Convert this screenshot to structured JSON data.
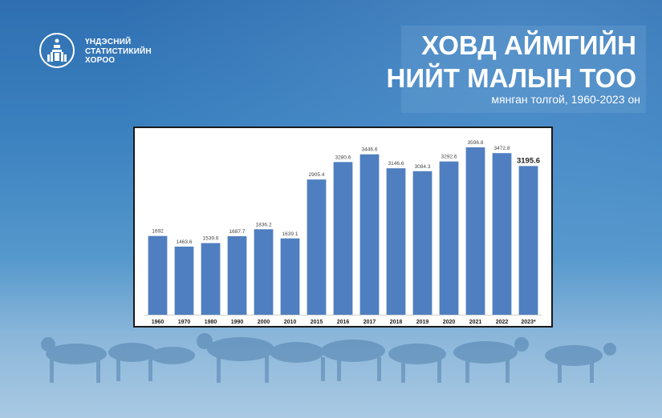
{
  "header": {
    "org_name_lines": [
      "ҮНДЭСНИЙ",
      "СТАТИСТИКИЙН",
      "ХОРОО"
    ],
    "title_lines": [
      "ХОВД АЙМГИЙН",
      "НИЙТ МАЛЫН ТОО"
    ],
    "subtitle": "мянган толгой, 1960-2023 он"
  },
  "colors": {
    "bar": "#4f7fc0",
    "background": "#3a80bf"
  },
  "chart_data": {
    "type": "bar",
    "title": "ХОВД АЙМГИЙН НИЙТ МАЛЫН ТОО",
    "subtitle": "мянган толгой, 1960-2023 он",
    "categories": [
      "1960",
      "1970",
      "1980",
      "1990",
      "2000",
      "2010",
      "2015",
      "2016",
      "2017",
      "2018",
      "2019",
      "2020",
      "2021",
      "2022",
      "2023*"
    ],
    "values": [
      1692,
      1463.6,
      1539.6,
      1687.7,
      1836.2,
      1639.1,
      2905.4,
      3280.6,
      3446.6,
      3146.6,
      3084.3,
      3292.6,
      3596.8,
      3472.8,
      3195.6
    ],
    "data_labels": [
      "1692",
      "1463.6",
      "1539.6",
      "1687.7",
      "1836.2",
      "1639.1",
      "2905.4",
      "3280.6",
      "3446.6",
      "3146.6",
      "3084.3",
      "3292.6",
      "3596.8",
      "3472.8",
      "3195.6"
    ],
    "highlight_index": 14,
    "ylim": [
      0,
      3700
    ],
    "grid": false,
    "xlabel": "",
    "ylabel": ""
  }
}
